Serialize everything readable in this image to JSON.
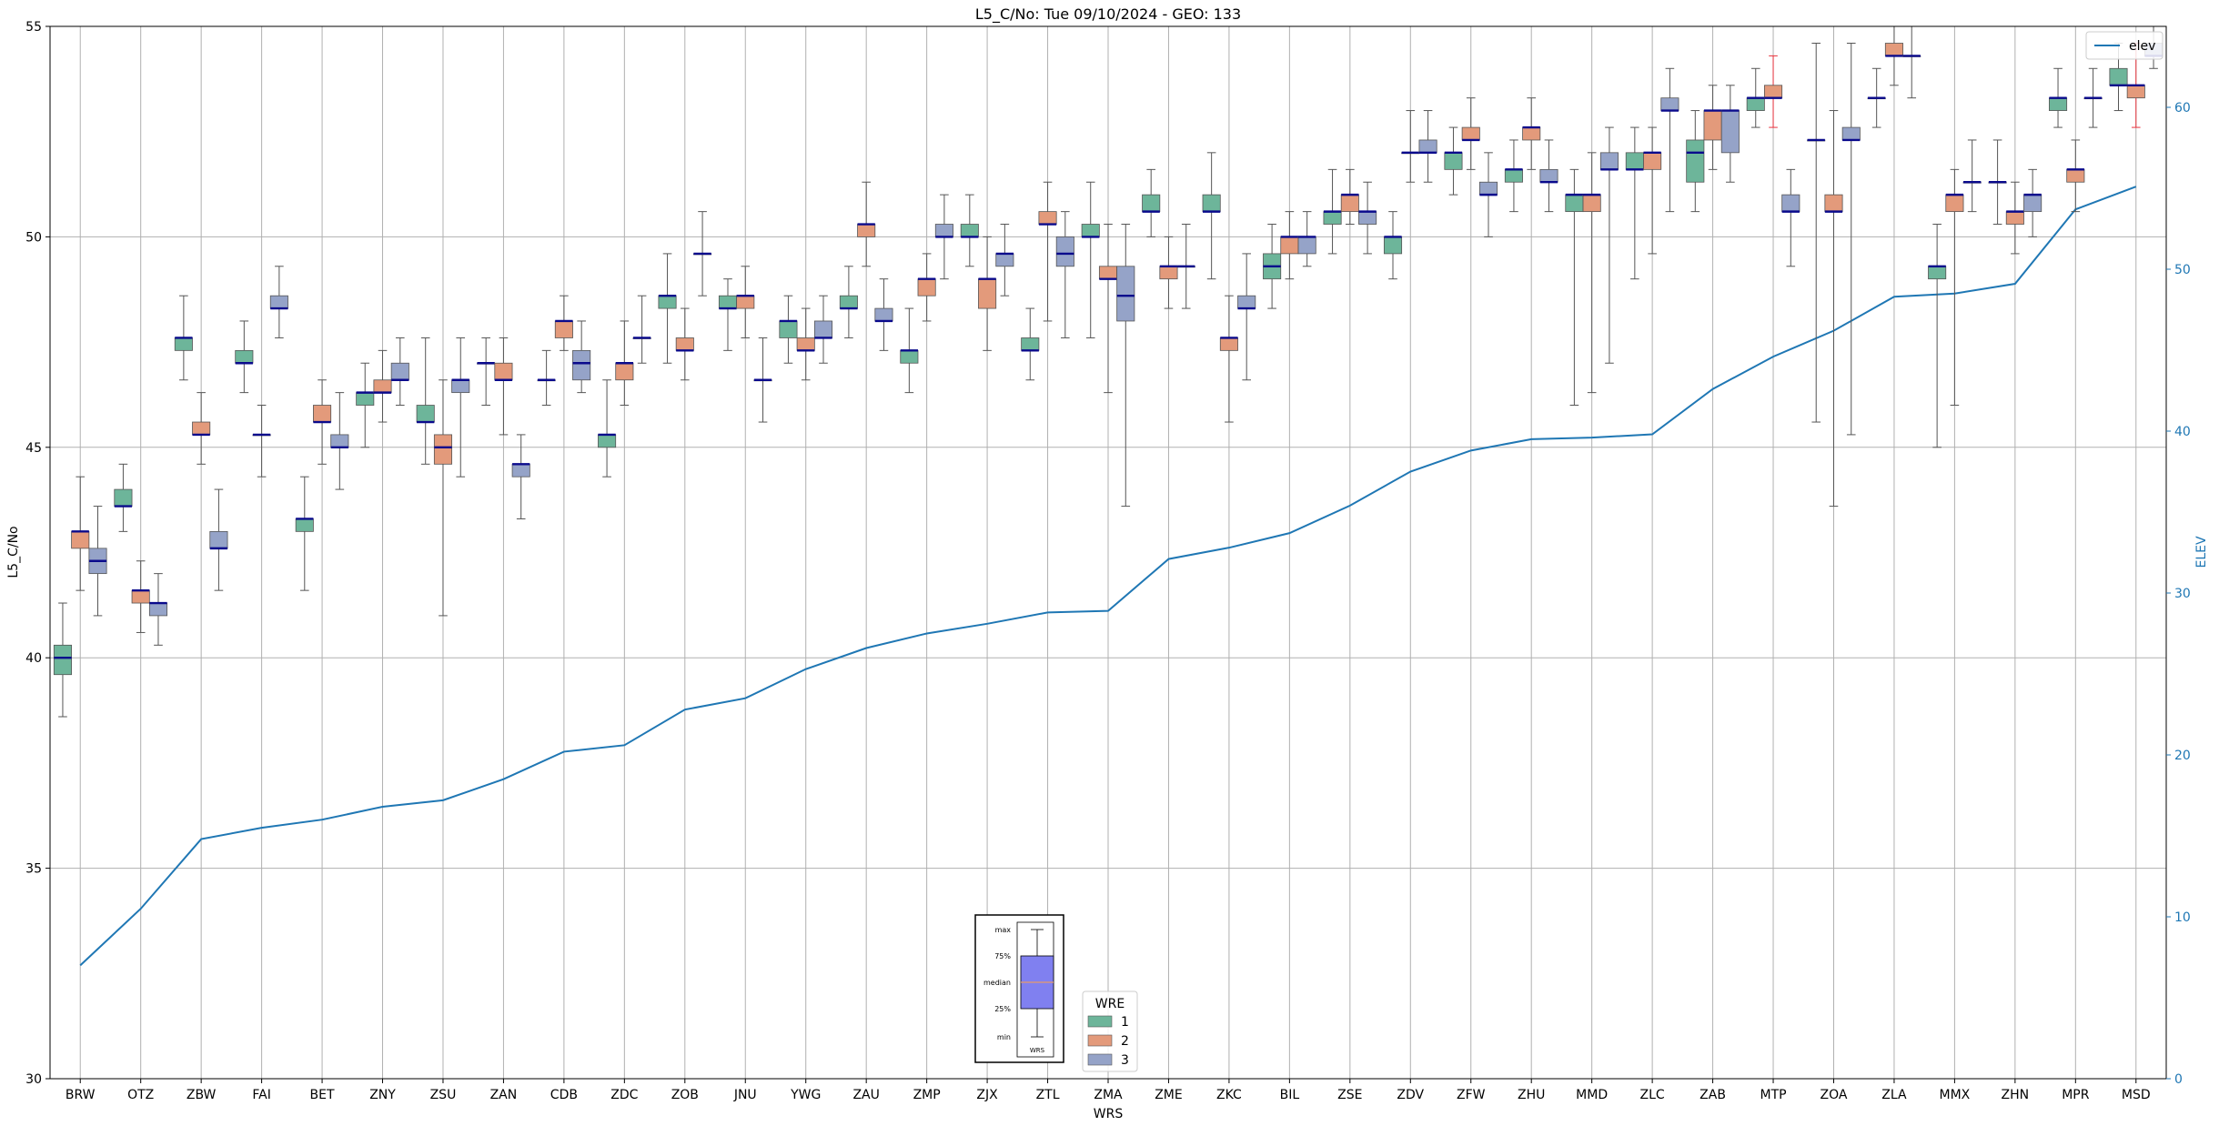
{
  "chart_data": {
    "type": "box",
    "title": "L5_C/No: Tue 09/10/2024 - GEO: 133",
    "xlabel": "WRS",
    "ylabel": "L5_C/No",
    "y2label": "ELEV",
    "ylim": [
      30,
      55
    ],
    "y2lim": [
      0,
      65
    ],
    "yticks": [
      30,
      35,
      40,
      45,
      50,
      55
    ],
    "y2ticks": [
      0,
      10,
      20,
      30,
      40,
      50,
      60
    ],
    "grid": true,
    "categories": [
      "BRW",
      "OTZ",
      "ZBW",
      "FAI",
      "BET",
      "ZNY",
      "ZSU",
      "ZAN",
      "CDB",
      "ZDC",
      "ZOB",
      "JNU",
      "YWG",
      "ZAU",
      "ZMP",
      "ZJX",
      "ZTL",
      "ZMA",
      "ZME",
      "ZKC",
      "BIL",
      "ZSE",
      "ZDV",
      "ZFW",
      "ZHU",
      "MMD",
      "ZLC",
      "ZAB",
      "MTP",
      "ZOA",
      "ZLA",
      "MMX",
      "ZHN",
      "MPR",
      "MSD"
    ],
    "legend": {
      "title": "WRE",
      "entries": [
        {
          "name": "1",
          "color": "#6db59a"
        },
        {
          "name": "2",
          "color": "#e39a7b"
        },
        {
          "name": "3",
          "color": "#95a3c8"
        }
      ],
      "line_entry": "elev",
      "line_legend_position": "top-right",
      "wre_legend_position": "bottom-center"
    },
    "boxes": [
      {
        "station": "BRW",
        "wre": 1,
        "min": 38.6,
        "q1": 39.6,
        "median": 40.0,
        "q3": 40.3,
        "max": 41.3
      },
      {
        "station": "BRW",
        "wre": 2,
        "min": 41.6,
        "q1": 42.6,
        "median": 43.0,
        "q3": 43.0,
        "max": 44.3
      },
      {
        "station": "BRW",
        "wre": 3,
        "min": 41.0,
        "q1": 42.0,
        "median": 42.3,
        "q3": 42.6,
        "max": 43.6
      },
      {
        "station": "OTZ",
        "wre": 1,
        "min": 43.0,
        "q1": 43.6,
        "median": 43.6,
        "q3": 44.0,
        "max": 44.6
      },
      {
        "station": "OTZ",
        "wre": 2,
        "min": 40.6,
        "q1": 41.3,
        "median": 41.6,
        "q3": 41.6,
        "max": 42.3
      },
      {
        "station": "OTZ",
        "wre": 3,
        "min": 40.3,
        "q1": 41.0,
        "median": 41.3,
        "q3": 41.3,
        "max": 42.0
      },
      {
        "station": "ZBW",
        "wre": 1,
        "min": 46.6,
        "q1": 47.3,
        "median": 47.6,
        "q3": 47.6,
        "max": 48.6
      },
      {
        "station": "ZBW",
        "wre": 2,
        "min": 44.6,
        "q1": 45.3,
        "median": 45.3,
        "q3": 45.6,
        "max": 46.3
      },
      {
        "station": "ZBW",
        "wre": 3,
        "min": 41.6,
        "q1": 42.6,
        "median": 42.6,
        "q3": 43.0,
        "max": 44.0
      },
      {
        "station": "FAI",
        "wre": 1,
        "min": 46.3,
        "q1": 47.0,
        "median": 47.0,
        "q3": 47.3,
        "max": 48.0
      },
      {
        "station": "FAI",
        "wre": 2,
        "min": 44.3,
        "q1": 45.3,
        "median": 45.3,
        "q3": 45.3,
        "max": 46.0
      },
      {
        "station": "FAI",
        "wre": 3,
        "min": 47.6,
        "q1": 48.3,
        "median": 48.3,
        "q3": 48.6,
        "max": 49.3
      },
      {
        "station": "BET",
        "wre": 1,
        "min": 41.6,
        "q1": 43.0,
        "median": 43.3,
        "q3": 43.3,
        "max": 44.3
      },
      {
        "station": "BET",
        "wre": 2,
        "min": 44.6,
        "q1": 45.6,
        "median": 45.6,
        "q3": 46.0,
        "max": 46.6
      },
      {
        "station": "BET",
        "wre": 3,
        "min": 44.0,
        "q1": 45.0,
        "median": 45.0,
        "q3": 45.3,
        "max": 46.3
      },
      {
        "station": "ZNY",
        "wre": 1,
        "min": 45.0,
        "q1": 46.0,
        "median": 46.3,
        "q3": 46.3,
        "max": 47.0
      },
      {
        "station": "ZNY",
        "wre": 2,
        "min": 45.6,
        "q1": 46.3,
        "median": 46.3,
        "q3": 46.6,
        "max": 47.3
      },
      {
        "station": "ZNY",
        "wre": 3,
        "min": 46.0,
        "q1": 46.6,
        "median": 46.6,
        "q3": 47.0,
        "max": 47.6
      },
      {
        "station": "ZSU",
        "wre": 1,
        "min": 44.6,
        "q1": 45.6,
        "median": 45.6,
        "q3": 46.0,
        "max": 47.6
      },
      {
        "station": "ZSU",
        "wre": 2,
        "min": 41.0,
        "q1": 44.6,
        "median": 45.0,
        "q3": 45.3,
        "max": 46.6
      },
      {
        "station": "ZSU",
        "wre": 3,
        "min": 44.3,
        "q1": 46.3,
        "median": 46.6,
        "q3": 46.6,
        "max": 47.6
      },
      {
        "station": "ZAN",
        "wre": 1,
        "min": 46.0,
        "q1": 47.0,
        "median": 47.0,
        "q3": 47.0,
        "max": 47.6
      },
      {
        "station": "ZAN",
        "wre": 2,
        "min": 45.3,
        "q1": 46.6,
        "median": 46.6,
        "q3": 47.0,
        "max": 47.6
      },
      {
        "station": "ZAN",
        "wre": 3,
        "min": 43.3,
        "q1": 44.3,
        "median": 44.6,
        "q3": 44.6,
        "max": 45.3
      },
      {
        "station": "CDB",
        "wre": 1,
        "min": 46.0,
        "q1": 46.6,
        "median": 46.6,
        "q3": 46.6,
        "max": 47.3
      },
      {
        "station": "CDB",
        "wre": 2,
        "min": 47.3,
        "q1": 47.6,
        "median": 48.0,
        "q3": 48.0,
        "max": 48.6
      },
      {
        "station": "CDB",
        "wre": 3,
        "min": 46.3,
        "q1": 46.6,
        "median": 47.0,
        "q3": 47.3,
        "max": 48.0
      },
      {
        "station": "ZDC",
        "wre": 1,
        "min": 44.3,
        "q1": 45.0,
        "median": 45.3,
        "q3": 45.3,
        "max": 46.6
      },
      {
        "station": "ZDC",
        "wre": 2,
        "min": 46.0,
        "q1": 46.6,
        "median": 47.0,
        "q3": 47.0,
        "max": 48.0
      },
      {
        "station": "ZDC",
        "wre": 3,
        "min": 47.0,
        "q1": 47.6,
        "median": 47.6,
        "q3": 47.6,
        "max": 48.6
      },
      {
        "station": "ZOB",
        "wre": 1,
        "min": 47.0,
        "q1": 48.3,
        "median": 48.6,
        "q3": 48.6,
        "max": 49.6
      },
      {
        "station": "ZOB",
        "wre": 2,
        "min": 46.6,
        "q1": 47.3,
        "median": 47.3,
        "q3": 47.6,
        "max": 48.3
      },
      {
        "station": "ZOB",
        "wre": 3,
        "min": 48.6,
        "q1": 49.6,
        "median": 49.6,
        "q3": 49.6,
        "max": 50.6
      },
      {
        "station": "JNU",
        "wre": 1,
        "min": 47.3,
        "q1": 48.3,
        "median": 48.3,
        "q3": 48.6,
        "max": 49.0
      },
      {
        "station": "JNU",
        "wre": 2,
        "min": 47.6,
        "q1": 48.3,
        "median": 48.6,
        "q3": 48.6,
        "max": 49.3
      },
      {
        "station": "JNU",
        "wre": 3,
        "min": 45.6,
        "q1": 46.6,
        "median": 46.6,
        "q3": 46.6,
        "max": 47.6
      },
      {
        "station": "YWG",
        "wre": 1,
        "min": 47.0,
        "q1": 47.6,
        "median": 48.0,
        "q3": 48.0,
        "max": 48.6
      },
      {
        "station": "YWG",
        "wre": 2,
        "min": 46.6,
        "q1": 47.3,
        "median": 47.3,
        "q3": 47.6,
        "max": 48.3
      },
      {
        "station": "YWG",
        "wre": 3,
        "min": 47.0,
        "q1": 47.6,
        "median": 47.6,
        "q3": 48.0,
        "max": 48.6
      },
      {
        "station": "ZAU",
        "wre": 1,
        "min": 47.6,
        "q1": 48.3,
        "median": 48.3,
        "q3": 48.6,
        "max": 49.3
      },
      {
        "station": "ZAU",
        "wre": 2,
        "min": 49.3,
        "q1": 50.0,
        "median": 50.3,
        "q3": 50.3,
        "max": 51.3
      },
      {
        "station": "ZAU",
        "wre": 3,
        "min": 47.3,
        "q1": 48.0,
        "median": 48.0,
        "q3": 48.3,
        "max": 49.0
      },
      {
        "station": "ZMP",
        "wre": 1,
        "min": 46.3,
        "q1": 47.0,
        "median": 47.3,
        "q3": 47.3,
        "max": 48.3
      },
      {
        "station": "ZMP",
        "wre": 2,
        "min": 48.0,
        "q1": 48.6,
        "median": 49.0,
        "q3": 49.0,
        "max": 49.6
      },
      {
        "station": "ZMP",
        "wre": 3,
        "min": 49.0,
        "q1": 50.0,
        "median": 50.0,
        "q3": 50.3,
        "max": 51.0
      },
      {
        "station": "ZJX",
        "wre": 1,
        "min": 49.3,
        "q1": 50.0,
        "median": 50.0,
        "q3": 50.3,
        "max": 51.0
      },
      {
        "station": "ZJX",
        "wre": 2,
        "min": 47.3,
        "q1": 48.3,
        "median": 49.0,
        "q3": 49.0,
        "max": 50.0
      },
      {
        "station": "ZJX",
        "wre": 3,
        "min": 48.6,
        "q1": 49.3,
        "median": 49.6,
        "q3": 49.6,
        "max": 50.3
      },
      {
        "station": "ZTL",
        "wre": 1,
        "min": 46.6,
        "q1": 47.3,
        "median": 47.3,
        "q3": 47.6,
        "max": 48.3
      },
      {
        "station": "ZTL",
        "wre": 2,
        "min": 48.0,
        "q1": 50.3,
        "median": 50.3,
        "q3": 50.6,
        "max": 51.3
      },
      {
        "station": "ZTL",
        "wre": 3,
        "min": 47.6,
        "q1": 49.3,
        "median": 49.6,
        "q3": 50.0,
        "max": 50.6
      },
      {
        "station": "ZMA",
        "wre": 1,
        "min": 47.6,
        "q1": 50.0,
        "median": 50.0,
        "q3": 50.3,
        "max": 51.3
      },
      {
        "station": "ZMA",
        "wre": 2,
        "min": 46.3,
        "q1": 49.0,
        "median": 49.0,
        "q3": 49.3,
        "max": 50.3
      },
      {
        "station": "ZMA",
        "wre": 3,
        "min": 43.6,
        "q1": 48.0,
        "median": 48.6,
        "q3": 49.3,
        "max": 50.3
      },
      {
        "station": "ZME",
        "wre": 1,
        "min": 50.0,
        "q1": 50.6,
        "median": 50.6,
        "q3": 51.0,
        "max": 51.6
      },
      {
        "station": "ZME",
        "wre": 2,
        "min": 48.3,
        "q1": 49.0,
        "median": 49.3,
        "q3": 49.3,
        "max": 50.0
      },
      {
        "station": "ZME",
        "wre": 3,
        "min": 48.3,
        "q1": 49.3,
        "median": 49.3,
        "q3": 49.3,
        "max": 50.3
      },
      {
        "station": "ZKC",
        "wre": 1,
        "min": 49.0,
        "q1": 50.6,
        "median": 50.6,
        "q3": 51.0,
        "max": 52.0
      },
      {
        "station": "ZKC",
        "wre": 2,
        "min": 45.6,
        "q1": 47.3,
        "median": 47.6,
        "q3": 47.6,
        "max": 48.6
      },
      {
        "station": "ZKC",
        "wre": 3,
        "min": 46.6,
        "q1": 48.3,
        "median": 48.3,
        "q3": 48.6,
        "max": 49.6
      },
      {
        "station": "BIL",
        "wre": 1,
        "min": 48.3,
        "q1": 49.0,
        "median": 49.3,
        "q3": 49.6,
        "max": 50.3
      },
      {
        "station": "BIL",
        "wre": 2,
        "min": 49.0,
        "q1": 49.6,
        "median": 50.0,
        "q3": 50.0,
        "max": 50.6
      },
      {
        "station": "BIL",
        "wre": 3,
        "min": 49.3,
        "q1": 49.6,
        "median": 50.0,
        "q3": 50.0,
        "max": 50.6
      },
      {
        "station": "ZSE",
        "wre": 1,
        "min": 49.6,
        "q1": 50.3,
        "median": 50.6,
        "q3": 50.6,
        "max": 51.6
      },
      {
        "station": "ZSE",
        "wre": 2,
        "min": 50.3,
        "q1": 50.6,
        "median": 51.0,
        "q3": 51.0,
        "max": 51.6
      },
      {
        "station": "ZSE",
        "wre": 3,
        "min": 49.6,
        "q1": 50.3,
        "median": 50.6,
        "q3": 50.6,
        "max": 51.3
      },
      {
        "station": "ZDV",
        "wre": 1,
        "min": 49.0,
        "q1": 49.6,
        "median": 50.0,
        "q3": 50.0,
        "max": 50.6
      },
      {
        "station": "ZDV",
        "wre": 2,
        "min": 51.3,
        "q1": 52.0,
        "median": 52.0,
        "q3": 52.0,
        "max": 53.0
      },
      {
        "station": "ZDV",
        "wre": 3,
        "min": 51.3,
        "q1": 52.0,
        "median": 52.0,
        "q3": 52.3,
        "max": 53.0
      },
      {
        "station": "ZFW",
        "wre": 1,
        "min": 51.0,
        "q1": 51.6,
        "median": 52.0,
        "q3": 52.0,
        "max": 52.6
      },
      {
        "station": "ZFW",
        "wre": 2,
        "min": 51.6,
        "q1": 52.3,
        "median": 52.3,
        "q3": 52.6,
        "max": 53.3
      },
      {
        "station": "ZFW",
        "wre": 3,
        "min": 50.0,
        "q1": 51.0,
        "median": 51.0,
        "q3": 51.3,
        "max": 52.0
      },
      {
        "station": "ZHU",
        "wre": 1,
        "min": 50.6,
        "q1": 51.3,
        "median": 51.6,
        "q3": 51.6,
        "max": 52.3
      },
      {
        "station": "ZHU",
        "wre": 2,
        "min": 51.6,
        "q1": 52.3,
        "median": 52.6,
        "q3": 52.6,
        "max": 53.3
      },
      {
        "station": "ZHU",
        "wre": 3,
        "min": 50.6,
        "q1": 51.3,
        "median": 51.3,
        "q3": 51.6,
        "max": 52.3
      },
      {
        "station": "MMD",
        "wre": 1,
        "min": 46.0,
        "q1": 50.6,
        "median": 51.0,
        "q3": 51.0,
        "max": 51.6
      },
      {
        "station": "MMD",
        "wre": 2,
        "min": 46.3,
        "q1": 50.6,
        "median": 51.0,
        "q3": 51.0,
        "max": 52.0
      },
      {
        "station": "MMD",
        "wre": 3,
        "min": 47.0,
        "q1": 51.6,
        "median": 51.6,
        "q3": 52.0,
        "max": 52.6
      },
      {
        "station": "ZLC",
        "wre": 1,
        "min": 49.0,
        "q1": 51.6,
        "median": 51.6,
        "q3": 52.0,
        "max": 52.6
      },
      {
        "station": "ZLC",
        "wre": 2,
        "min": 49.6,
        "q1": 51.6,
        "median": 52.0,
        "q3": 52.0,
        "max": 52.6
      },
      {
        "station": "ZLC",
        "wre": 3,
        "min": 50.6,
        "q1": 53.0,
        "median": 53.0,
        "q3": 53.3,
        "max": 54.0
      },
      {
        "station": "ZAB",
        "wre": 1,
        "min": 50.6,
        "q1": 51.3,
        "median": 52.0,
        "q3": 52.3,
        "max": 53.0
      },
      {
        "station": "ZAB",
        "wre": 2,
        "min": 51.6,
        "q1": 52.3,
        "median": 53.0,
        "q3": 53.0,
        "max": 53.6
      },
      {
        "station": "ZAB",
        "wre": 3,
        "min": 51.3,
        "q1": 52.0,
        "median": 53.0,
        "q3": 53.0,
        "max": 53.6
      },
      {
        "station": "MTP",
        "wre": 1,
        "min": 52.6,
        "q1": 53.0,
        "median": 53.3,
        "q3": 53.3,
        "max": 54.0
      },
      {
        "station": "MTP",
        "wre": 2,
        "min": 52.6,
        "q1": 53.3,
        "median": 53.3,
        "q3": 53.6,
        "max": 54.3
      },
      {
        "station": "MTP",
        "wre": 3,
        "min": 49.3,
        "q1": 50.6,
        "median": 50.6,
        "q3": 51.0,
        "max": 51.6
      },
      {
        "station": "ZOA",
        "wre": 1,
        "min": 45.6,
        "q1": 52.3,
        "median": 52.3,
        "q3": 52.3,
        "max": 54.6
      },
      {
        "station": "ZOA",
        "wre": 2,
        "min": 43.6,
        "q1": 50.6,
        "median": 50.6,
        "q3": 51.0,
        "max": 53.0
      },
      {
        "station": "ZOA",
        "wre": 3,
        "min": 45.3,
        "q1": 52.3,
        "median": 52.3,
        "q3": 52.6,
        "max": 54.6
      },
      {
        "station": "ZLA",
        "wre": 1,
        "min": 52.6,
        "q1": 53.3,
        "median": 53.3,
        "q3": 53.3,
        "max": 54.0
      },
      {
        "station": "ZLA",
        "wre": 2,
        "min": 53.6,
        "q1": 54.3,
        "median": 54.3,
        "q3": 54.6,
        "max": 55.0
      },
      {
        "station": "ZLA",
        "wre": 3,
        "min": 53.3,
        "q1": 54.3,
        "median": 54.3,
        "q3": 54.3,
        "max": 55.0
      },
      {
        "station": "MMX",
        "wre": 1,
        "min": 45.0,
        "q1": 49.0,
        "median": 49.3,
        "q3": 49.3,
        "max": 50.3
      },
      {
        "station": "MMX",
        "wre": 2,
        "min": 46.0,
        "q1": 50.6,
        "median": 51.0,
        "q3": 51.0,
        "max": 51.6
      },
      {
        "station": "MMX",
        "wre": 3,
        "min": 50.6,
        "q1": 51.3,
        "median": 51.3,
        "q3": 51.3,
        "max": 52.3
      },
      {
        "station": "ZHN",
        "wre": 1,
        "min": 50.3,
        "q1": 51.3,
        "median": 51.3,
        "q3": 51.3,
        "max": 52.3
      },
      {
        "station": "ZHN",
        "wre": 2,
        "min": 49.6,
        "q1": 50.3,
        "median": 50.6,
        "q3": 50.6,
        "max": 51.3
      },
      {
        "station": "ZHN",
        "wre": 3,
        "min": 50.0,
        "q1": 50.6,
        "median": 51.0,
        "q3": 51.0,
        "max": 51.6
      },
      {
        "station": "MPR",
        "wre": 1,
        "min": 52.6,
        "q1": 53.0,
        "median": 53.3,
        "q3": 53.3,
        "max": 54.0
      },
      {
        "station": "MPR",
        "wre": 2,
        "min": 50.6,
        "q1": 51.3,
        "median": 51.6,
        "q3": 51.6,
        "max": 52.3
      },
      {
        "station": "MPR",
        "wre": 3,
        "min": 52.6,
        "q1": 53.3,
        "median": 53.3,
        "q3": 53.3,
        "max": 54.0
      },
      {
        "station": "MSD",
        "wre": 1,
        "min": 53.0,
        "q1": 53.6,
        "median": 53.6,
        "q3": 54.0,
        "max": 54.6
      },
      {
        "station": "MSD",
        "wre": 2,
        "min": 52.6,
        "q1": 53.3,
        "median": 53.6,
        "q3": 53.6,
        "max": 54.6
      },
      {
        "station": "MSD",
        "wre": 3,
        "min": 54.0,
        "q1": 54.3,
        "median": 54.3,
        "q3": 54.6,
        "max": 55.0
      }
    ],
    "elev": [
      7.0,
      10.5,
      14.8,
      15.5,
      16.0,
      16.8,
      17.2,
      18.5,
      20.2,
      20.6,
      22.8,
      23.5,
      25.3,
      26.6,
      27.5,
      28.1,
      28.8,
      28.9,
      32.1,
      32.8,
      33.7,
      35.4,
      37.5,
      38.8,
      39.5,
      39.6,
      39.8,
      42.6,
      44.6,
      46.2,
      48.3,
      48.5,
      49.1,
      53.7,
      55.1
    ],
    "elev_color": "#1f77b4",
    "box_key": {
      "labels": [
        "max",
        "75%",
        "median",
        "25%",
        "min"
      ],
      "xlabel": "WRS",
      "fill": "#8080f0"
    }
  }
}
